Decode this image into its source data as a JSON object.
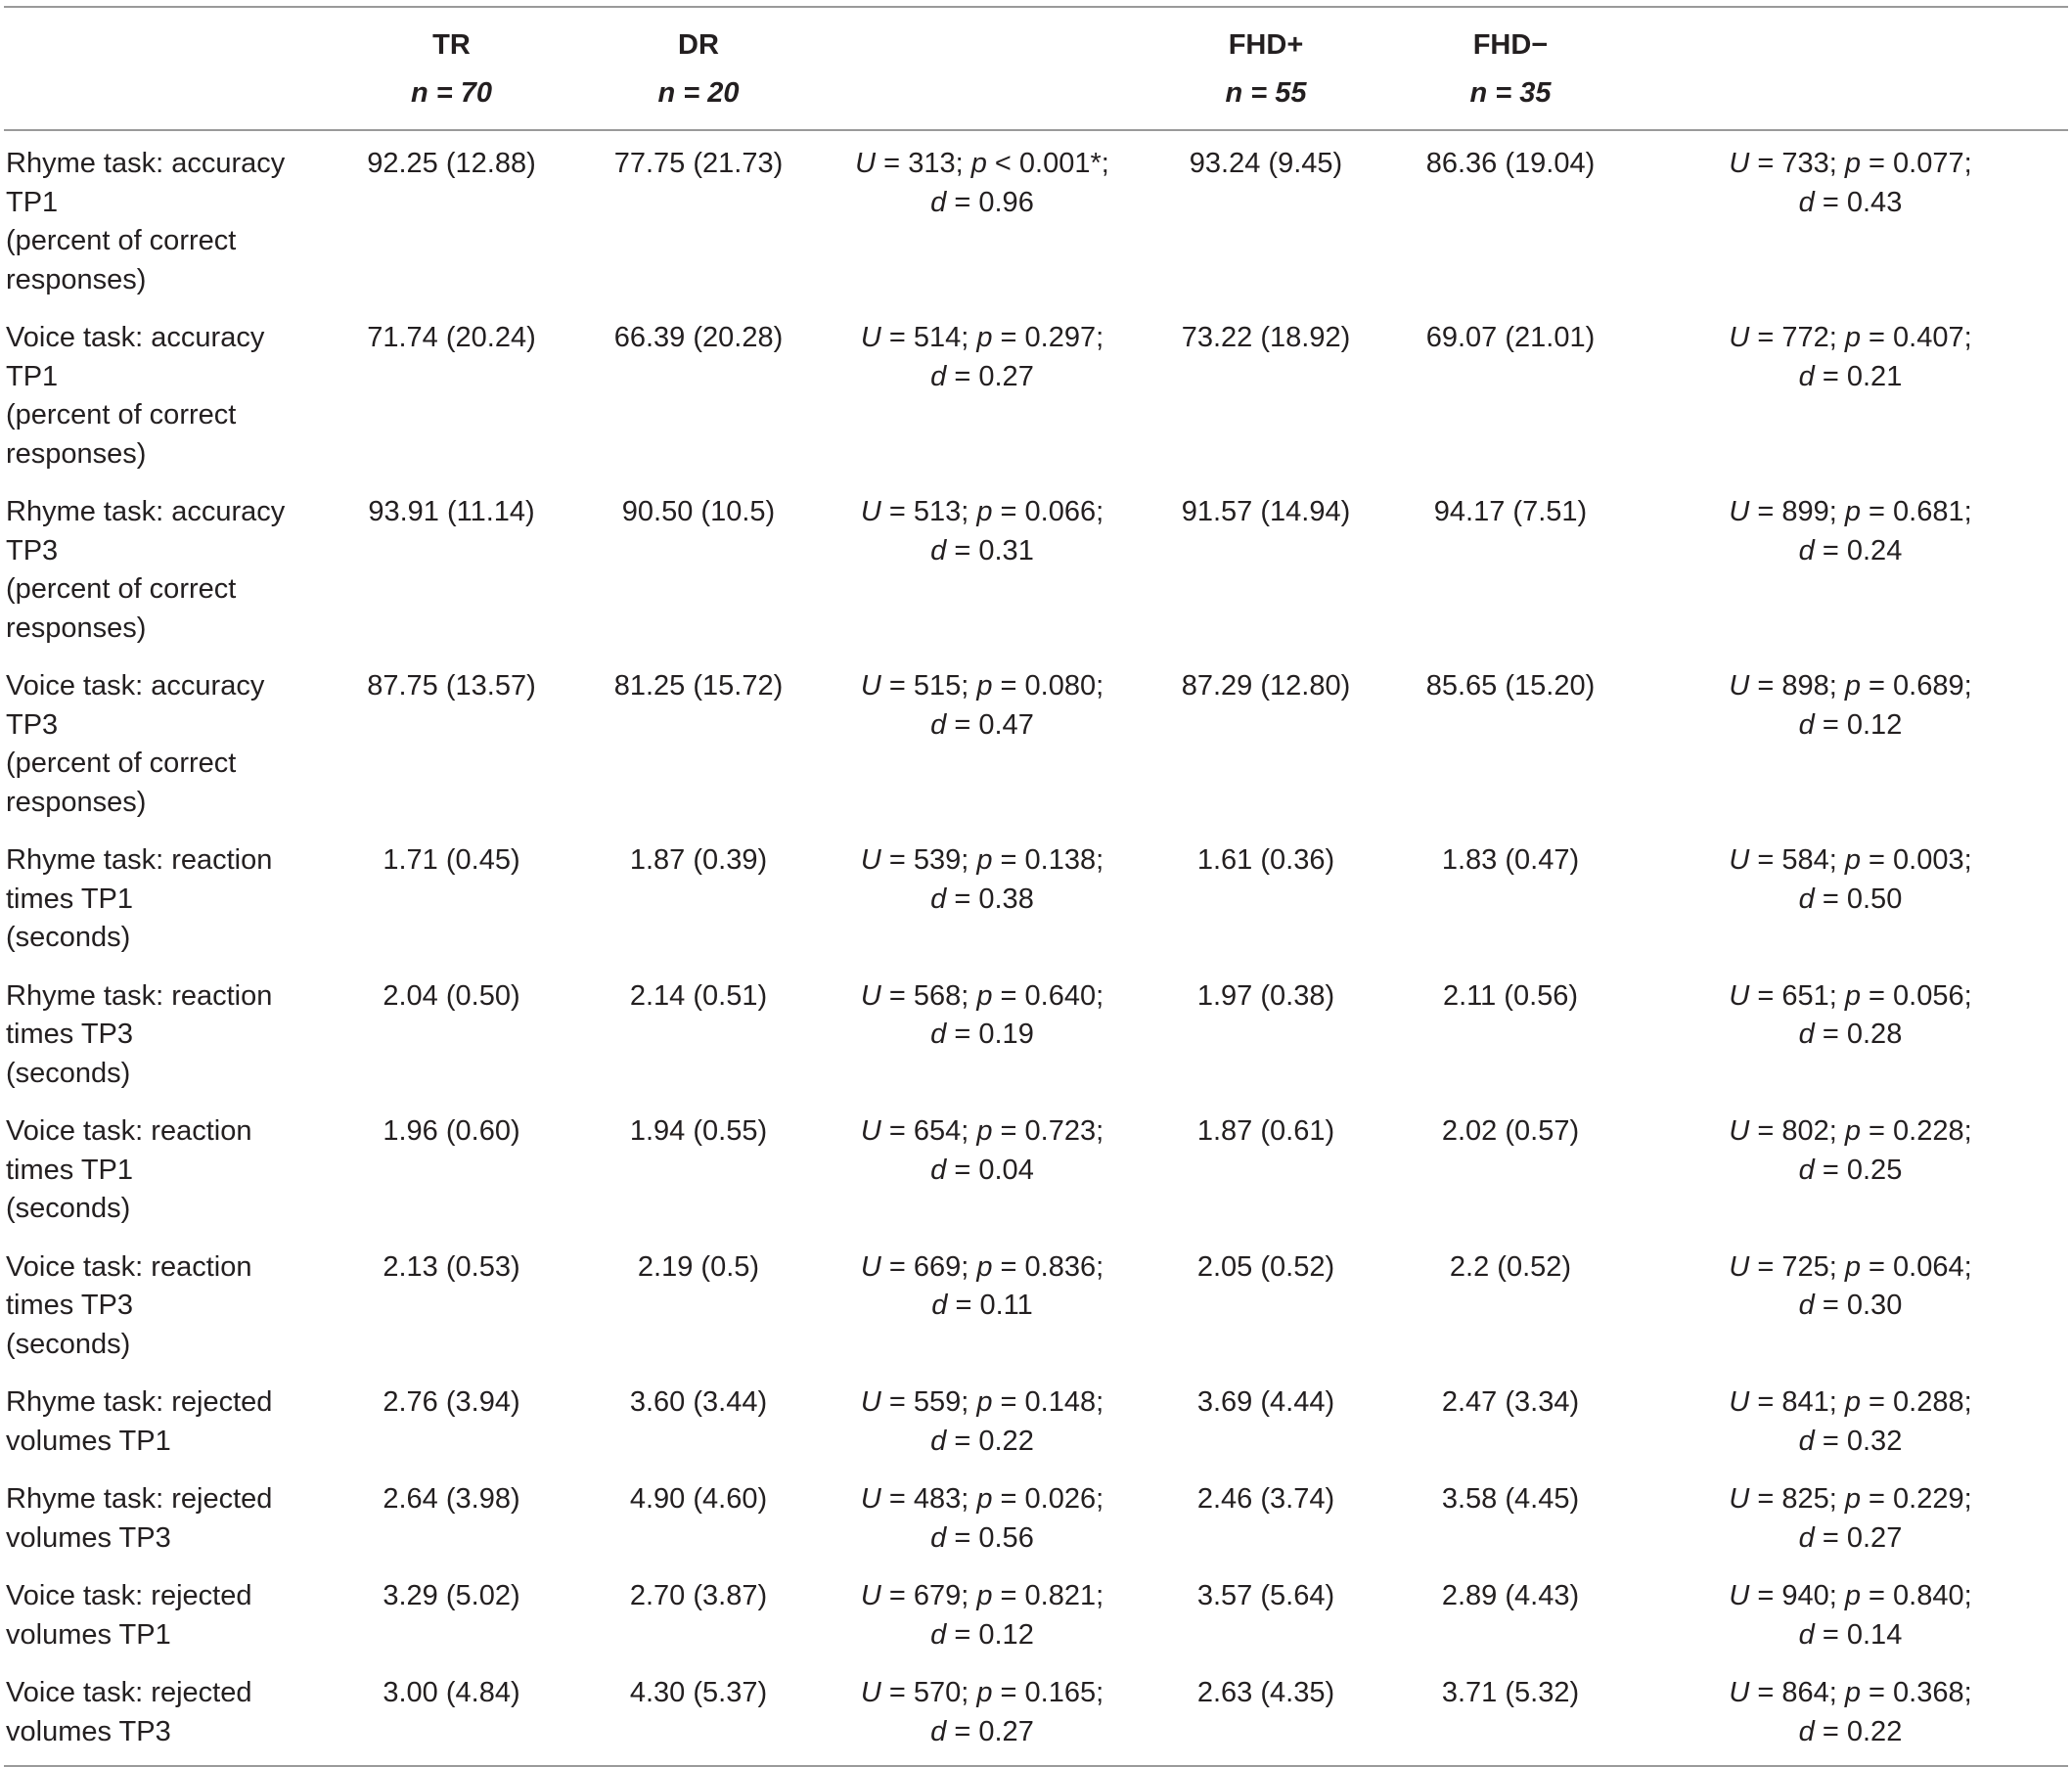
{
  "header": {
    "columns": [
      {
        "key": "label",
        "title": "",
        "n": ""
      },
      {
        "key": "tr",
        "title": "TR",
        "n": "n = 70"
      },
      {
        "key": "dr",
        "title": "DR",
        "n": "n = 20"
      },
      {
        "key": "test1",
        "title": "",
        "n": ""
      },
      {
        "key": "fhdp",
        "title": "FHD+",
        "n": "n = 55"
      },
      {
        "key": "fhdm",
        "title": "FHD−",
        "n": "n = 35"
      },
      {
        "key": "test2",
        "title": "",
        "n": ""
      }
    ]
  },
  "rows": [
    {
      "label": [
        "Rhyme task: accuracy",
        "TP1",
        "(percent of correct",
        "responses)"
      ],
      "tr": "92.25 (12.88)",
      "dr": "77.75 (21.73)",
      "test1": {
        "U": "313",
        "p": "< 0.001*",
        "d": "0.96"
      },
      "fhdp": "93.24 (9.45)",
      "fhdm": "86.36 (19.04)",
      "test2": {
        "U": "733",
        "p": "0.077",
        "d": "0.43"
      }
    },
    {
      "label": [
        "Voice task: accuracy",
        "TP1",
        "(percent of correct",
        "responses)"
      ],
      "tr": "71.74 (20.24)",
      "dr": "66.39 (20.28)",
      "test1": {
        "U": "514",
        "p": "0.297",
        "d": "0.27"
      },
      "fhdp": "73.22 (18.92)",
      "fhdm": "69.07 (21.01)",
      "test2": {
        "U": "772",
        "p": "0.407",
        "d": "0.21"
      }
    },
    {
      "label": [
        "Rhyme task: accuracy",
        "TP3",
        "(percent of correct",
        "responses)"
      ],
      "tr": "93.91 (11.14)",
      "dr": "90.50 (10.5)",
      "test1": {
        "U": "513",
        "p": "0.066",
        "d": "0.31"
      },
      "fhdp": "91.57 (14.94)",
      "fhdm": "94.17 (7.51)",
      "test2": {
        "U": "899",
        "p": "0.681",
        "d": "0.24"
      }
    },
    {
      "label": [
        "Voice task: accuracy",
        "TP3",
        "(percent of correct",
        "responses)"
      ],
      "tr": "87.75 (13.57)",
      "dr": "81.25 (15.72)",
      "test1": {
        "U": "515",
        "p": "0.080",
        "d": "0.47"
      },
      "fhdp": "87.29 (12.80)",
      "fhdm": "85.65 (15.20)",
      "test2": {
        "U": "898",
        "p": "0.689",
        "d": "0.12"
      }
    },
    {
      "label": [
        "Rhyme task: reaction",
        "times TP1",
        "(seconds)"
      ],
      "tr": "1.71 (0.45)",
      "dr": "1.87 (0.39)",
      "test1": {
        "U": "539",
        "p": "0.138",
        "d": "0.38"
      },
      "fhdp": "1.61 (0.36)",
      "fhdm": "1.83 (0.47)",
      "test2": {
        "U": "584",
        "p": "0.003",
        "d": "0.50"
      }
    },
    {
      "label": [
        "Rhyme task: reaction",
        "times TP3",
        "(seconds)"
      ],
      "tr": "2.04 (0.50)",
      "dr": "2.14 (0.51)",
      "test1": {
        "U": "568",
        "p": "0.640",
        "d": "0.19"
      },
      "fhdp": "1.97 (0.38)",
      "fhdm": "2.11 (0.56)",
      "test2": {
        "U": "651",
        "p": "0.056",
        "d": "0.28"
      }
    },
    {
      "label": [
        "Voice task: reaction",
        "times TP1",
        "(seconds)"
      ],
      "tr": "1.96 (0.60)",
      "dr": "1.94 (0.55)",
      "test1": {
        "U": "654",
        "p": "0.723",
        "d": "0.04"
      },
      "fhdp": "1.87 (0.61)",
      "fhdm": "2.02 (0.57)",
      "test2": {
        "U": "802",
        "p": "0.228",
        "d": "0.25"
      }
    },
    {
      "label": [
        "Voice task: reaction",
        "times TP3",
        "(seconds)"
      ],
      "tr": "2.13 (0.53)",
      "dr": "2.19 (0.5)",
      "test1": {
        "U": "669",
        "p": "0.836",
        "d": "0.11"
      },
      "fhdp": "2.05 (0.52)",
      "fhdm": "2.2 (0.52)",
      "test2": {
        "U": "725",
        "p": "0.064",
        "d": "0.30"
      }
    },
    {
      "label": [
        "Rhyme task: rejected",
        "volumes TP1"
      ],
      "tr": "2.76 (3.94)",
      "dr": "3.60 (3.44)",
      "test1": {
        "U": "559",
        "p": "0.148",
        "d": "0.22"
      },
      "fhdp": "3.69 (4.44)",
      "fhdm": "2.47 (3.34)",
      "test2": {
        "U": "841",
        "p": "0.288",
        "d": "0.32"
      }
    },
    {
      "label": [
        "Rhyme task: rejected",
        "volumes TP3"
      ],
      "tr": "2.64 (3.98)",
      "dr": "4.90 (4.60)",
      "test1": {
        "U": "483",
        "p": "0.026",
        "d": "0.56"
      },
      "fhdp": "2.46 (3.74)",
      "fhdm": "3.58 (4.45)",
      "test2": {
        "U": "825",
        "p": "0.229",
        "d": "0.27"
      }
    },
    {
      "label": [
        "Voice task: rejected",
        "volumes TP1"
      ],
      "tr": "3.29 (5.02)",
      "dr": "2.70 (3.87)",
      "test1": {
        "U": "679",
        "p": "0.821",
        "d": "0.12"
      },
      "fhdp": "3.57 (5.64)",
      "fhdm": "2.89 (4.43)",
      "test2": {
        "U": "940",
        "p": "0.840",
        "d": "0.14"
      }
    },
    {
      "label": [
        "Voice task: rejected",
        "volumes TP3"
      ],
      "tr": "3.00 (4.84)",
      "dr": "4.30 (5.37)",
      "test1": {
        "U": "570",
        "p": "0.165",
        "d": "0.27"
      },
      "fhdp": "2.63 (4.35)",
      "fhdm": "3.71 (5.32)",
      "test2": {
        "U": "864",
        "p": "0.368",
        "d": "0.22"
      }
    }
  ]
}
